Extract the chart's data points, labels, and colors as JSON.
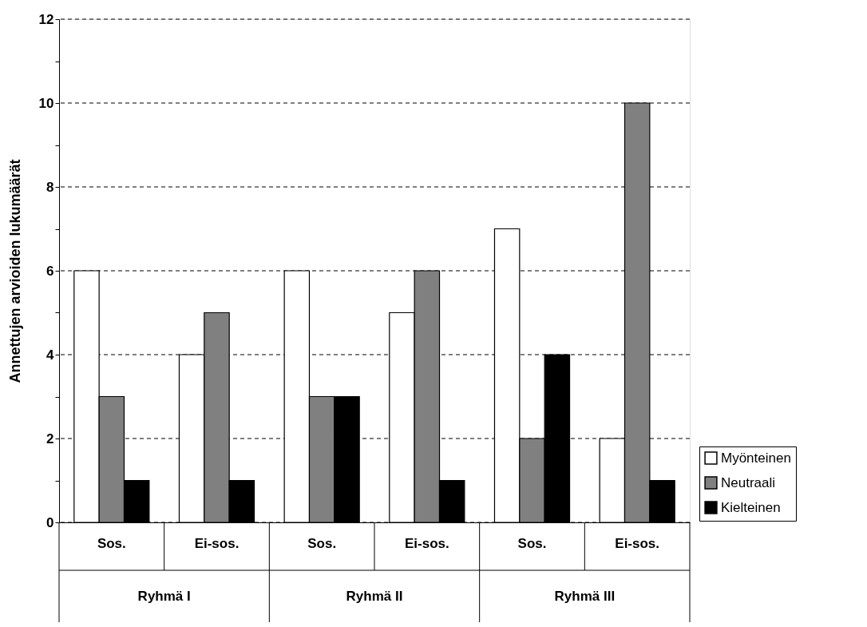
{
  "chart_data": {
    "type": "bar",
    "ylabel": "Annettujen arvioiden lukumäärät",
    "categories": [
      "Sos.",
      "Ei-sos.",
      "Sos.",
      "Ei-sos.",
      "Sos.",
      "Ei-sos."
    ],
    "annotations": [
      "Ryhmä I",
      "Ryhmä II",
      "Ryhmä III"
    ],
    "series": [
      {
        "name": "Myönteinen",
        "color": "#ffffff",
        "values": [
          6,
          4,
          6,
          5,
          7,
          2
        ]
      },
      {
        "name": "Neutraali",
        "color": "#808080",
        "values": [
          3,
          5,
          3,
          6,
          2,
          10
        ]
      },
      {
        "name": "Kielteinen",
        "color": "#000000",
        "values": [
          1,
          1,
          3,
          1,
          4,
          1
        ]
      }
    ],
    "ylim": [
      0,
      12
    ],
    "yticks": [
      0,
      {
        "value": 1,
        "label": null
      },
      2,
      {
        "value": 3,
        "label": null
      },
      4,
      {
        "value": 5,
        "label": null
      },
      6,
      {
        "value": 7,
        "label": null
      },
      8,
      {
        "value": 9,
        "label": null
      },
      10,
      {
        "value": 11,
        "label": null
      },
      12
    ],
    "grid": "y",
    "legend": "right"
  }
}
